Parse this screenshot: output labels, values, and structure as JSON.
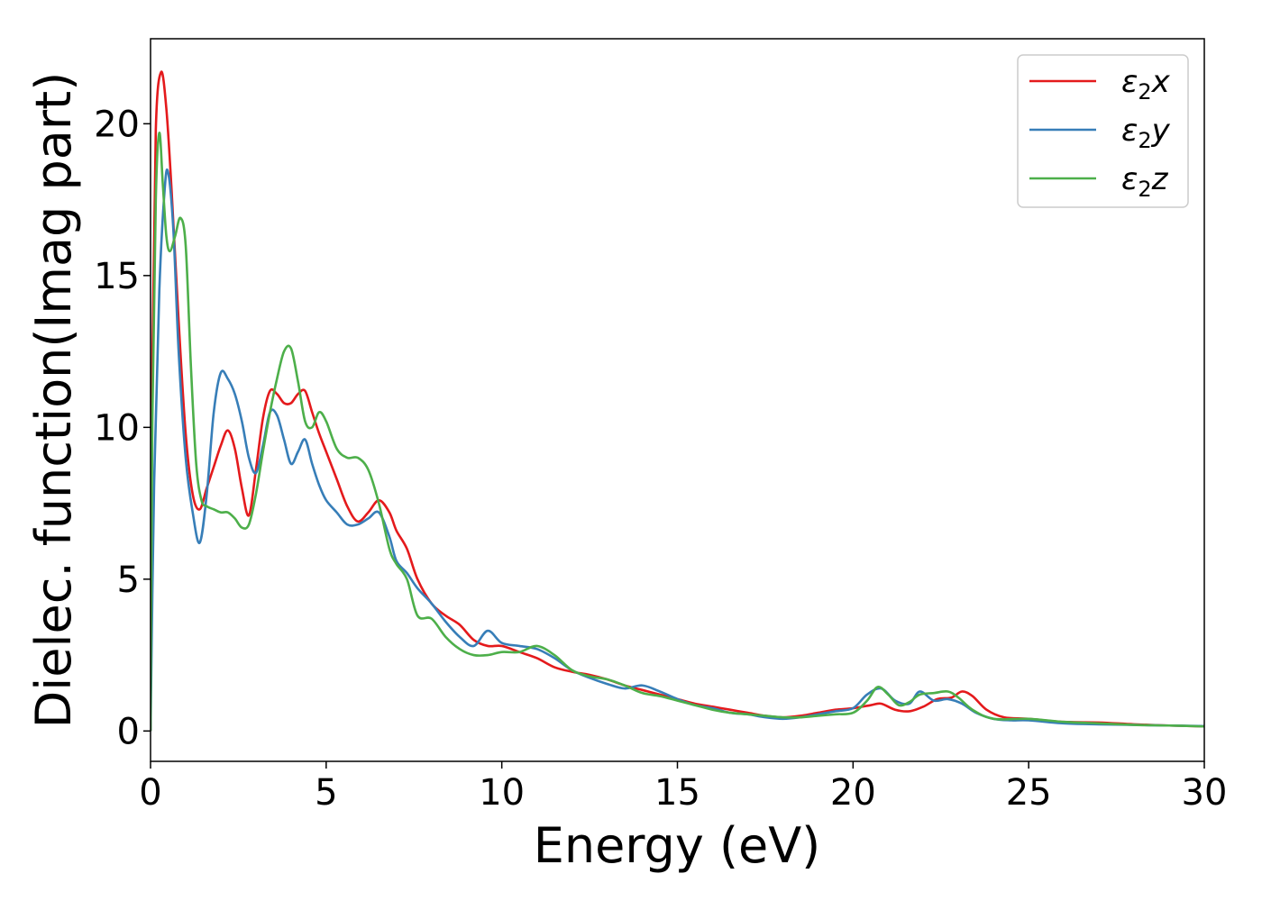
{
  "chart_data": {
    "type": "line",
    "title": "",
    "xlabel": "Energy (eV)",
    "ylabel": "Dielec. function(Imag part)",
    "xlim": [
      0,
      30
    ],
    "ylim": [
      -1,
      22.8
    ],
    "xticks": [
      0,
      5,
      10,
      15,
      20,
      25,
      30
    ],
    "yticks": [
      0,
      5,
      10,
      15,
      20
    ],
    "grid": false,
    "legend_position": "top-right",
    "series": [
      {
        "name": "ε2x",
        "legend": {
          "base": "ε",
          "sub": "2",
          "suffix": "x"
        },
        "color": "#e41a1c",
        "x": [
          0,
          0.05,
          0.15,
          0.3,
          0.45,
          0.6,
          0.8,
          1.0,
          1.2,
          1.4,
          1.6,
          1.8,
          2.0,
          2.2,
          2.4,
          2.6,
          2.8,
          3.0,
          3.2,
          3.4,
          3.6,
          3.8,
          4.0,
          4.2,
          4.4,
          4.6,
          4.8,
          5.0,
          5.3,
          5.6,
          5.9,
          6.2,
          6.5,
          6.8,
          7.0,
          7.3,
          7.6,
          8.0,
          8.4,
          8.8,
          9.2,
          9.6,
          10.0,
          10.5,
          11.0,
          11.5,
          12.0,
          12.5,
          13.0,
          13.5,
          14.0,
          14.5,
          15.0,
          15.5,
          16.0,
          16.5,
          17.0,
          17.5,
          18.0,
          18.5,
          19.0,
          19.5,
          20.0,
          20.5,
          20.8,
          21.2,
          21.6,
          22.0,
          22.4,
          22.8,
          23.1,
          23.4,
          23.8,
          24.3,
          25.0,
          26.0,
          27.0,
          28.0,
          29.0,
          30.0
        ],
        "y": [
          0,
          12.0,
          19.8,
          21.7,
          20.5,
          17.8,
          13.5,
          9.8,
          7.8,
          7.3,
          8.0,
          8.7,
          9.4,
          9.9,
          9.3,
          8.0,
          7.1,
          8.6,
          10.3,
          11.2,
          11.1,
          10.8,
          10.8,
          11.1,
          11.2,
          10.5,
          9.8,
          9.2,
          8.3,
          7.4,
          6.9,
          7.2,
          7.6,
          7.2,
          6.6,
          6.0,
          5.0,
          4.2,
          3.8,
          3.5,
          3.0,
          2.8,
          2.8,
          2.6,
          2.4,
          2.1,
          1.95,
          1.85,
          1.7,
          1.5,
          1.35,
          1.2,
          1.05,
          0.9,
          0.8,
          0.7,
          0.6,
          0.5,
          0.45,
          0.5,
          0.6,
          0.7,
          0.75,
          0.85,
          0.9,
          0.7,
          0.65,
          0.8,
          1.05,
          1.1,
          1.3,
          1.15,
          0.7,
          0.45,
          0.4,
          0.3,
          0.28,
          0.22,
          0.18,
          0.15
        ]
      },
      {
        "name": "ε2y",
        "legend": {
          "base": "ε",
          "sub": "2",
          "suffix": "y"
        },
        "color": "#377eb8",
        "x": [
          0,
          0.1,
          0.25,
          0.4,
          0.5,
          0.65,
          0.8,
          1.0,
          1.2,
          1.4,
          1.6,
          1.8,
          2.0,
          2.2,
          2.4,
          2.6,
          2.8,
          3.0,
          3.2,
          3.4,
          3.6,
          3.8,
          4.0,
          4.2,
          4.4,
          4.6,
          4.8,
          5.0,
          5.3,
          5.6,
          5.9,
          6.2,
          6.5,
          6.8,
          7.0,
          7.3,
          7.6,
          8.0,
          8.4,
          8.8,
          9.2,
          9.6,
          10.0,
          10.5,
          11.0,
          11.5,
          12.0,
          12.5,
          13.0,
          13.5,
          14.0,
          14.5,
          15.0,
          15.5,
          16.0,
          16.5,
          17.0,
          17.5,
          18.0,
          18.5,
          19.0,
          19.5,
          20.0,
          20.4,
          20.8,
          21.2,
          21.6,
          21.9,
          22.3,
          22.7,
          23.1,
          23.5,
          24.0,
          24.5,
          25.0,
          26.0,
          27.0,
          28.0,
          29.0,
          30.0
        ],
        "y": [
          0,
          8.0,
          14.5,
          17.8,
          18.4,
          16.5,
          12.5,
          9.0,
          7.2,
          6.2,
          7.8,
          10.5,
          11.8,
          11.6,
          11.1,
          10.2,
          9.0,
          8.5,
          9.4,
          10.5,
          10.4,
          9.6,
          8.8,
          9.2,
          9.6,
          8.8,
          8.1,
          7.6,
          7.2,
          6.8,
          6.8,
          7.0,
          7.2,
          6.4,
          5.6,
          5.2,
          4.7,
          4.2,
          3.6,
          3.1,
          2.8,
          3.3,
          2.9,
          2.8,
          2.7,
          2.4,
          2.0,
          1.75,
          1.55,
          1.4,
          1.5,
          1.3,
          1.05,
          0.85,
          0.75,
          0.6,
          0.55,
          0.45,
          0.4,
          0.45,
          0.55,
          0.65,
          0.75,
          1.2,
          1.4,
          1.0,
          0.9,
          1.3,
          1.0,
          1.05,
          0.9,
          0.6,
          0.4,
          0.35,
          0.35,
          0.25,
          0.22,
          0.2,
          0.18,
          0.16
        ]
      },
      {
        "name": "ε2z",
        "legend": {
          "base": "ε",
          "sub": "2",
          "suffix": "z"
        },
        "color": "#4daf4a",
        "x": [
          0,
          0.05,
          0.15,
          0.25,
          0.35,
          0.45,
          0.55,
          0.7,
          0.85,
          1.0,
          1.15,
          1.3,
          1.45,
          1.6,
          1.8,
          2.0,
          2.2,
          2.4,
          2.6,
          2.8,
          3.0,
          3.2,
          3.4,
          3.6,
          3.8,
          4.0,
          4.2,
          4.4,
          4.6,
          4.8,
          5.0,
          5.3,
          5.6,
          5.9,
          6.2,
          6.5,
          6.8,
          7.0,
          7.3,
          7.6,
          8.0,
          8.4,
          8.8,
          9.2,
          9.6,
          10.0,
          10.5,
          11.0,
          11.5,
          12.0,
          12.5,
          13.0,
          13.5,
          14.0,
          14.5,
          15.0,
          15.5,
          16.0,
          16.5,
          17.0,
          17.5,
          18.0,
          18.5,
          19.0,
          19.5,
          20.0,
          20.4,
          20.7,
          21.0,
          21.3,
          21.6,
          21.9,
          22.3,
          22.7,
          23.0,
          23.4,
          24.0,
          25.0,
          26.0,
          27.0,
          28.0,
          29.0,
          30.0
        ],
        "y": [
          0,
          10.0,
          17.5,
          19.7,
          18.0,
          16.3,
          15.8,
          16.3,
          16.9,
          16.0,
          12.0,
          8.8,
          7.6,
          7.4,
          7.3,
          7.2,
          7.2,
          7.0,
          6.7,
          6.8,
          7.8,
          9.2,
          10.5,
          11.6,
          12.5,
          12.6,
          11.5,
          10.2,
          10.0,
          10.5,
          10.2,
          9.3,
          9.0,
          9.0,
          8.6,
          7.5,
          6.0,
          5.5,
          5.0,
          3.8,
          3.7,
          3.1,
          2.7,
          2.5,
          2.5,
          2.6,
          2.6,
          2.8,
          2.5,
          2.0,
          1.8,
          1.7,
          1.5,
          1.25,
          1.15,
          1.0,
          0.85,
          0.7,
          0.6,
          0.55,
          0.5,
          0.45,
          0.45,
          0.5,
          0.55,
          0.6,
          1.0,
          1.45,
          1.2,
          0.85,
          0.95,
          1.2,
          1.25,
          1.3,
          1.1,
          0.7,
          0.4,
          0.4,
          0.3,
          0.25,
          0.2,
          0.18,
          0.15
        ]
      }
    ]
  }
}
